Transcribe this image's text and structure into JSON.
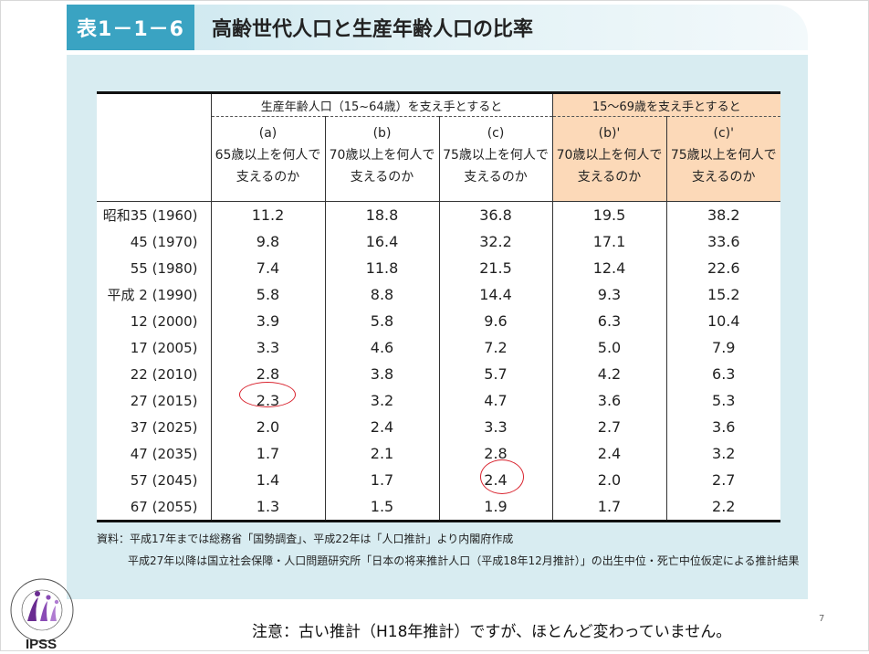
{
  "header": {
    "tag": "表1－1－6",
    "title": "高齢世代人口と生産年齢人口の比率"
  },
  "table": {
    "group_headers": [
      "生産年齢人口（15~64歳）を支え手とすると",
      "15～69歳を支え手とすると"
    ],
    "columns": [
      {
        "letter": "(a)",
        "line1": "65歳以上を何人で",
        "line2": "支えるのか"
      },
      {
        "letter": "(b)",
        "line1": "70歳以上を何人で",
        "line2": "支えるのか"
      },
      {
        "letter": "(c)",
        "line1": "75歳以上を何人で",
        "line2": "支えるのか"
      },
      {
        "letter": "(b)'",
        "line1": "70歳以上を何人で",
        "line2": "支えるのか"
      },
      {
        "letter": "(c)'",
        "line1": "75歳以上を何人で",
        "line2": "支えるのか"
      }
    ],
    "rows": [
      {
        "year": "昭和35 (1960)",
        "values": [
          "11.2",
          "18.8",
          "36.8",
          "19.5",
          "38.2"
        ]
      },
      {
        "year": "45 (1970)",
        "values": [
          "9.8",
          "16.4",
          "32.2",
          "17.1",
          "33.6"
        ]
      },
      {
        "year": "55 (1980)",
        "values": [
          "7.4",
          "11.8",
          "21.5",
          "12.4",
          "22.6"
        ]
      },
      {
        "year": "平成 2 (1990)",
        "values": [
          "5.8",
          "8.8",
          "14.4",
          "9.3",
          "15.2"
        ]
      },
      {
        "year": "12 (2000)",
        "values": [
          "3.9",
          "5.8",
          "9.6",
          "6.3",
          "10.4"
        ]
      },
      {
        "year": "17 (2005)",
        "values": [
          "3.3",
          "4.6",
          "7.2",
          "5.0",
          "7.9"
        ]
      },
      {
        "year": "22 (2010)",
        "values": [
          "2.8",
          "3.8",
          "5.7",
          "4.2",
          "6.3"
        ]
      },
      {
        "year": "27 (2015)",
        "values": [
          "2.3",
          "3.2",
          "4.7",
          "3.6",
          "5.3"
        ]
      },
      {
        "year": "37 (2025)",
        "values": [
          "2.0",
          "2.4",
          "3.3",
          "2.7",
          "3.6"
        ]
      },
      {
        "year": "47 (2035)",
        "values": [
          "1.7",
          "2.1",
          "2.8",
          "2.4",
          "3.2"
        ]
      },
      {
        "year": "57 (2045)",
        "values": [
          "1.4",
          "1.7",
          "2.4",
          "2.0",
          "2.7"
        ]
      },
      {
        "year": "67 (2055)",
        "values": [
          "1.3",
          "1.5",
          "1.9",
          "1.7",
          "2.2"
        ]
      }
    ]
  },
  "source": {
    "line1": "資料：平成17年までは総務省「国勢調査」、平成22年は「人口推計」より内閣府作成",
    "line2": "平成27年以降は国立社会保障・人口問題研究所「日本の将来推計人口（平成18年12月推計）」の出生中位・死亡中位仮定による推計結果"
  },
  "note": "注意：古い推計（H18年推計）ですが、ほとんど変わっていません。",
  "page_number": "7",
  "logo": {
    "text": "IPSS",
    "ring_text": "National Institute of Population and Social Security Research"
  },
  "colors": {
    "accent": "#3aa3c2",
    "panel": "#d8ecf1",
    "highlight": "#fcd9b8",
    "circle": "#d9232e"
  }
}
